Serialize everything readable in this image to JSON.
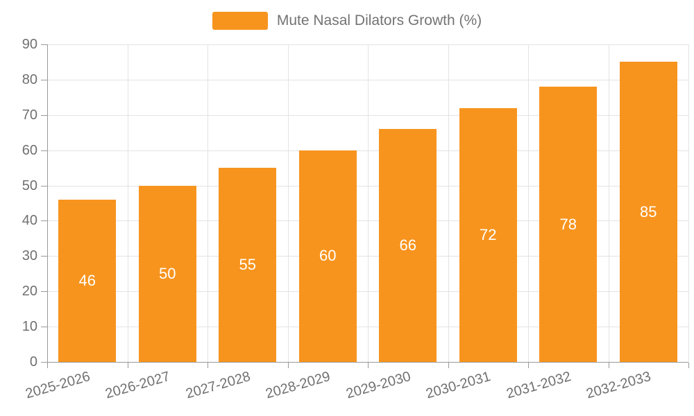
{
  "legend": {
    "label": "Mute Nasal Dilators Growth (%)"
  },
  "colors": {
    "bar": "#f7941e",
    "axis_line": "#999999",
    "gridline": "#e3e3e3",
    "axis_text": "#707070",
    "legend_text": "#737373",
    "bar_label_text": "#ffffff",
    "background": "#ffffff"
  },
  "chart_data": {
    "type": "bar",
    "title": "",
    "categories": [
      "2025-2026",
      "2026-2027",
      "2027-2028",
      "2028-2029",
      "2029-2030",
      "2030-2031",
      "2031-2032",
      "2032-2033"
    ],
    "series": [
      {
        "name": "Mute Nasal Dilators Growth (%)",
        "values": [
          46,
          50,
          55,
          60,
          66,
          72,
          78,
          85
        ]
      }
    ],
    "value_labels": {
      "position": "inside-center",
      "values": [
        "46",
        "50",
        "55",
        "60",
        "66",
        "72",
        "78",
        "85"
      ]
    },
    "xlabel": "",
    "ylabel": "",
    "ylim": [
      0,
      90
    ],
    "ytick_interval": 10,
    "ytick_labels": [
      "0",
      "10",
      "20",
      "30",
      "40",
      "50",
      "60",
      "70",
      "80",
      "90"
    ],
    "grid": true,
    "gridlines": {
      "horizontal": true,
      "vertical": true
    },
    "legend_position": "top-center",
    "x_label_rotation_deg": -16
  }
}
